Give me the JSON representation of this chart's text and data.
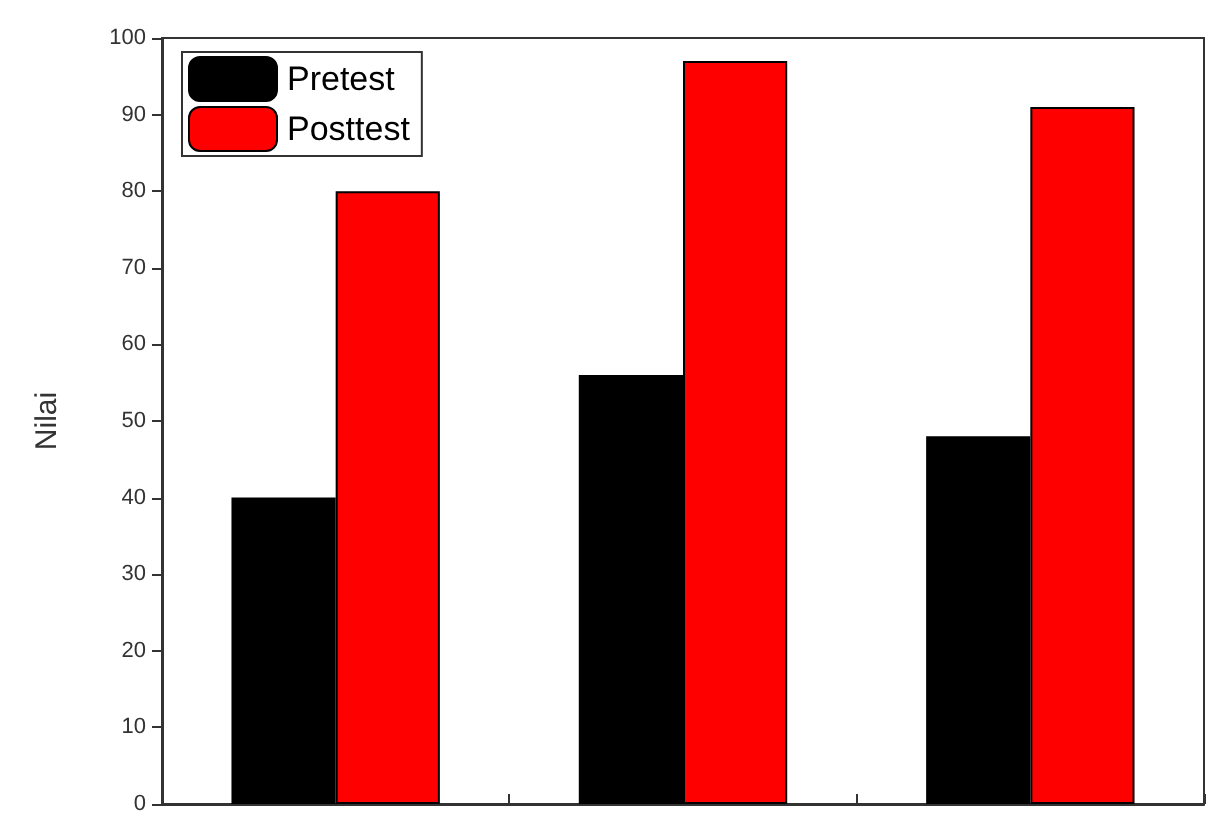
{
  "chart_data": {
    "type": "bar",
    "ylabel": "Nilai",
    "categories": [
      null,
      null,
      null
    ],
    "series": [
      {
        "name": "Pretest",
        "color": "#000000",
        "values": [
          40,
          56,
          48
        ]
      },
      {
        "name": "Posttest",
        "color": "#ff0000",
        "values": [
          80,
          97,
          91
        ]
      }
    ],
    "ylim": [
      0,
      100
    ],
    "yticks": [
      0,
      10,
      20,
      30,
      40,
      50,
      60,
      70,
      80,
      90,
      100
    ],
    "grid": false,
    "legend": "top left"
  }
}
